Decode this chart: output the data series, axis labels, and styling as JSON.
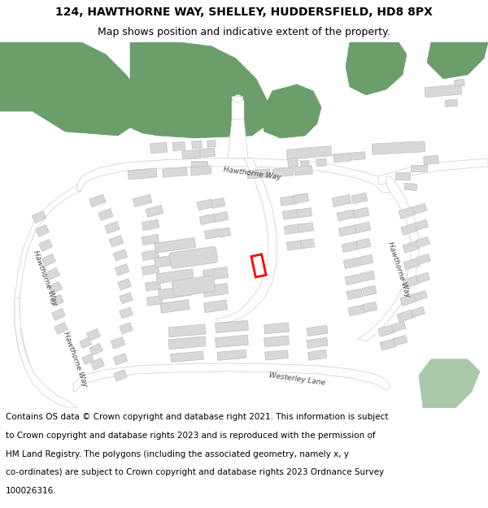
{
  "title_line1": "124, HAWTHORNE WAY, SHELLEY, HUDDERSFIELD, HD8 8PX",
  "title_line2": "Map shows position and indicative extent of the property.",
  "footer_lines": [
    "Contains OS data © Crown copyright and database right 2021. This information is subject",
    "to Crown copyright and database rights 2023 and is reproduced with the permission of",
    "HM Land Registry. The polygons (including the associated geometry, namely x, y",
    "co-ordinates) are subject to Crown copyright and database rights 2023 Ordnance Survey",
    "100026316."
  ],
  "map_bg": "#ffffff",
  "building_color": "#d8d8d8",
  "building_edge": "#c0c0c0",
  "green_color": "#6b9e6b",
  "green_light": "#a8c8a8",
  "road_color": "#ffffff",
  "road_edge": "#cccccc",
  "highlight_color": "#ff0000",
  "title_fontsize": 10,
  "subtitle_fontsize": 9,
  "footer_fontsize": 7.5,
  "label_fontsize": 6.5,
  "label_color": "#444444"
}
